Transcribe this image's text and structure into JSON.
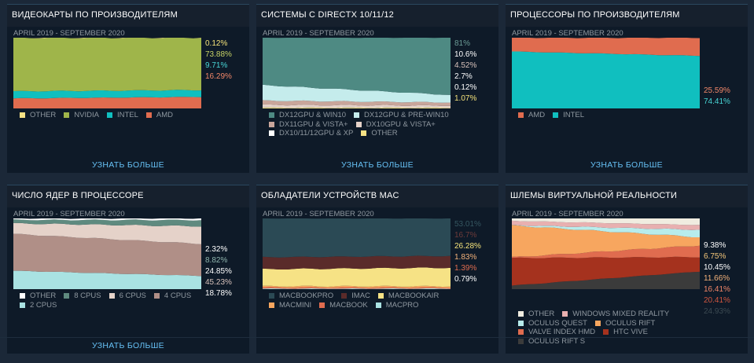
{
  "daterange": "APRIL 2019 - SEPTEMBER 2020",
  "learn_more": "УЗНАТЬ БОЛЬШЕ",
  "panels": [
    {
      "title": "ВИДЕОКАРТЫ ПО ПРОИЗВОДИТЕЛЯМ",
      "values": [
        {
          "text": "0.12%",
          "color": "#f4e27a"
        },
        {
          "text": "73.88%",
          "color": "#c7d266"
        },
        {
          "text": "9.71%",
          "color": "#48d6d6"
        },
        {
          "text": "16.29%",
          "color": "#f08668"
        }
      ],
      "legend": [
        {
          "label": "OTHER",
          "color": "#f6e285"
        },
        {
          "label": "NVIDIA",
          "color": "#9fb54a"
        },
        {
          "label": "INTEL",
          "color": "#10bfbf"
        },
        {
          "label": "AMD",
          "color": "#e06c4f"
        }
      ]
    },
    {
      "title": "СИСТЕМЫ С DIRECTX 10/11/12",
      "values": [
        {
          "text": "81%",
          "color": "#6c9c96"
        },
        {
          "text": "10.6%",
          "color": "#ffffff"
        },
        {
          "text": "4.52%",
          "color": "#d8c2bb"
        },
        {
          "text": "2.7%",
          "color": "#ffffff"
        },
        {
          "text": "0.12%",
          "color": "#ffffff"
        },
        {
          "text": "1.07%",
          "color": "#f4e27a"
        }
      ],
      "legend": [
        {
          "label": "DX12GPU & WIN10",
          "color": "#4e8a83"
        },
        {
          "label": "DX12GPU & PRE-WIN10",
          "color": "#c5ecec"
        },
        {
          "label": "DX11GPU & VISTA+",
          "color": "#c9a69b"
        },
        {
          "label": "DX10GPU & VISTA+",
          "color": "#e5d2c9"
        },
        {
          "label": "DX10/11/12GPU & XP",
          "color": "#ffffff"
        },
        {
          "label": "OTHER",
          "color": "#f6e285"
        }
      ]
    },
    {
      "title": "ПРОЦЕССОРЫ ПО ПРОИЗВОДИТЕЛЯМ",
      "values": [
        {
          "text": "25.59%",
          "color": "#f08668"
        },
        {
          "text": "74.41%",
          "color": "#48d6d6"
        }
      ],
      "legend": [
        {
          "label": "AMD",
          "color": "#e06c4f"
        },
        {
          "label": "INTEL",
          "color": "#10bfbf"
        }
      ]
    },
    {
      "title": "ЧИСЛО ЯДЕР В ПРОЦЕССОРЕ",
      "values": [
        {
          "text": "2.32%",
          "color": "#ffffff"
        },
        {
          "text": "8.82%",
          "color": "#8fb5ad"
        },
        {
          "text": "24.85%",
          "color": "#ffffff"
        },
        {
          "text": "45.23%",
          "color": "#d8c2bb"
        },
        {
          "text": "18.78%",
          "color": "#ffffff"
        }
      ],
      "legend": [
        {
          "label": "OTHER",
          "color": "#ffffff"
        },
        {
          "label": "8 CPUS",
          "color": "#5f8a7f"
        },
        {
          "label": "6 CPUS",
          "color": "#e5d2c9"
        },
        {
          "label": "4 CPUS",
          "color": "#b08f87"
        },
        {
          "label": "2 CPUS",
          "color": "#a9e2e2"
        }
      ]
    },
    {
      "title": "ОБЛАДАТЕЛИ УСТРОЙСТВ MAC",
      "values": [
        {
          "text": "53.01%",
          "color": "#355660"
        },
        {
          "text": "16.7%",
          "color": "#6e3b3a"
        },
        {
          "text": "26.28%",
          "color": "#f4e27a"
        },
        {
          "text": "1.83%",
          "color": "#f4b27a"
        },
        {
          "text": "1.39%",
          "color": "#e06c4f"
        },
        {
          "text": "0.79%",
          "color": "#ffffff"
        }
      ],
      "legend": [
        {
          "label": "MACBOOKPRO",
          "color": "#2b4a55"
        },
        {
          "label": "IMAC",
          "color": "#5a2b2a"
        },
        {
          "label": "MACBOOKAIR",
          "color": "#f6e285"
        },
        {
          "label": "MACMINI",
          "color": "#f7a65f"
        },
        {
          "label": "MACBOOK",
          "color": "#e06c4f"
        },
        {
          "label": "MACPRO",
          "color": "#a9e2e2"
        }
      ]
    },
    {
      "title": "ШЛЕМЫ ВИРТУАЛЬНОЙ РЕАЛЬНОСТИ",
      "values": [
        {
          "text": "9.38%",
          "color": "#ffffff"
        },
        {
          "text": "6.75%",
          "color": "#f4c77a"
        },
        {
          "text": "10.45%",
          "color": "#ffffff"
        },
        {
          "text": "11.66%",
          "color": "#f4b27a"
        },
        {
          "text": "16.41%",
          "color": "#f08668"
        },
        {
          "text": "20.41%",
          "color": "#d0563f"
        },
        {
          "text": "24.93%",
          "color": "#3c4a52"
        }
      ],
      "legend": [
        {
          "label": "OTHER",
          "color": "#f0ece0"
        },
        {
          "label": "WINDOWS MIXED REALITY",
          "color": "#e8b0b0"
        },
        {
          "label": "OCULUS QUEST",
          "color": "#b7ecec"
        },
        {
          "label": "OCULUS RIFT",
          "color": "#f7a65f"
        },
        {
          "label": "VALVE INDEX HMD",
          "color": "#e06c4f"
        },
        {
          "label": "HTC VIVE",
          "color": "#a5321e"
        },
        {
          "label": "OCULUS RIFT S",
          "color": "#3b3b3b"
        }
      ]
    }
  ],
  "chart_data": [
    {
      "type": "area",
      "title": "ВИДЕОКАРТЫ ПО ПРОИЗВОДИТЕЛЯМ",
      "x": [
        "APRIL 2019",
        "SEPTEMBER 2020"
      ],
      "series": [
        {
          "name": "AMD",
          "values": [
            14.2,
            16.29
          ]
        },
        {
          "name": "INTEL",
          "values": [
            10.0,
            9.71
          ]
        },
        {
          "name": "NVIDIA",
          "values": [
            75.5,
            73.88
          ]
        },
        {
          "name": "OTHER",
          "values": [
            0.3,
            0.12
          ]
        }
      ],
      "ylim": [
        0,
        100
      ]
    },
    {
      "type": "area",
      "title": "СИСТЕМЫ С DIRECTX 10/11/12",
      "x": [
        "APRIL 2019",
        "SEPTEMBER 2020"
      ],
      "series": [
        {
          "name": "OTHER",
          "values": [
            1.2,
            1.07
          ]
        },
        {
          "name": "DX10/11/12GPU & XP",
          "values": [
            0.3,
            0.12
          ]
        },
        {
          "name": "DX10GPU & VISTA+",
          "values": [
            3.5,
            2.7
          ]
        },
        {
          "name": "DX11GPU & VISTA+",
          "values": [
            6.0,
            4.52
          ]
        },
        {
          "name": "DX12GPU & PRE-WIN10",
          "values": [
            22.0,
            10.6
          ]
        },
        {
          "name": "DX12GPU & WIN10",
          "values": [
            67.0,
            81
          ]
        }
      ],
      "ylim": [
        0,
        100
      ]
    },
    {
      "type": "area",
      "title": "ПРОЦЕССОРЫ ПО ПРОИЗВОДИТЕЛЯМ",
      "x": [
        "APRIL 2019",
        "SEPTEMBER 2020"
      ],
      "series": [
        {
          "name": "INTEL",
          "values": [
            80.5,
            74.41
          ]
        },
        {
          "name": "AMD",
          "values": [
            19.5,
            25.59
          ]
        }
      ],
      "ylim": [
        0,
        100
      ]
    },
    {
      "type": "area",
      "title": "ЧИСЛО ЯДЕР В ПРОЦЕССОРЕ",
      "x": [
        "APRIL 2019",
        "SEPTEMBER 2020"
      ],
      "series": [
        {
          "name": "2 CPUS",
          "values": [
            26.0,
            18.78
          ]
        },
        {
          "name": "4 CPUS",
          "values": [
            52.0,
            45.23
          ]
        },
        {
          "name": "6 CPUS",
          "values": [
            15.0,
            24.85
          ]
        },
        {
          "name": "8 CPUS",
          "values": [
            5.0,
            8.82
          ]
        },
        {
          "name": "OTHER",
          "values": [
            2.0,
            2.32
          ]
        }
      ],
      "ylim": [
        0,
        100
      ]
    },
    {
      "type": "area",
      "title": "ОБЛАДАТЕЛИ УСТРОЙСТВ MAC",
      "x": [
        "APRIL 2019",
        "SEPTEMBER 2020"
      ],
      "series": [
        {
          "name": "MACPRO",
          "values": [
            0.8,
            0.79
          ]
        },
        {
          "name": "MACBOOK",
          "values": [
            1.6,
            1.39
          ]
        },
        {
          "name": "MACMINI",
          "values": [
            1.8,
            1.83
          ]
        },
        {
          "name": "MACBOOKAIR",
          "values": [
            24.0,
            26.28
          ]
        },
        {
          "name": "IMAC",
          "values": [
            17.0,
            16.7
          ]
        },
        {
          "name": "MACBOOKPRO",
          "values": [
            54.8,
            53.01
          ]
        }
      ],
      "ylim": [
        0,
        100
      ]
    },
    {
      "type": "area",
      "title": "ШЛЕМЫ ВИРТУАЛЬНОЙ РЕАЛЬНОСТИ",
      "x": [
        "APRIL 2019",
        "SEPTEMBER 2020"
      ],
      "series": [
        {
          "name": "OCULUS RIFT S",
          "values": [
            5.0,
            24.93
          ]
        },
        {
          "name": "HTC VIVE",
          "values": [
            39.0,
            20.41
          ]
        },
        {
          "name": "VALVE INDEX HMD",
          "values": [
            1.0,
            16.41
          ]
        },
        {
          "name": "OCULUS RIFT",
          "values": [
            45.0,
            11.66
          ]
        },
        {
          "name": "OCULUS QUEST",
          "values": [
            0.5,
            10.45
          ]
        },
        {
          "name": "WINDOWS MIXED REALITY",
          "values": [
            6.0,
            6.75
          ]
        },
        {
          "name": "OTHER",
          "values": [
            3.5,
            9.38
          ]
        }
      ],
      "ylim": [
        0,
        100
      ]
    }
  ]
}
